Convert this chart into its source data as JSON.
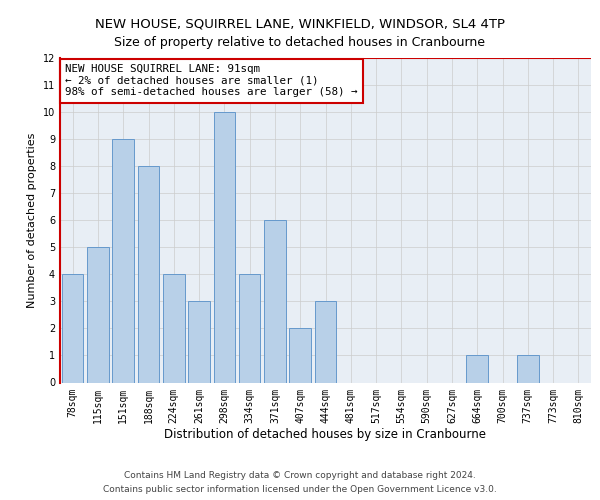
{
  "title": "NEW HOUSE, SQUIRREL LANE, WINKFIELD, WINDSOR, SL4 4TP",
  "subtitle": "Size of property relative to detached houses in Cranbourne",
  "xlabel": "Distribution of detached houses by size in Cranbourne",
  "ylabel": "Number of detached properties",
  "categories": [
    "78sqm",
    "115sqm",
    "151sqm",
    "188sqm",
    "224sqm",
    "261sqm",
    "298sqm",
    "334sqm",
    "371sqm",
    "407sqm",
    "444sqm",
    "481sqm",
    "517sqm",
    "554sqm",
    "590sqm",
    "627sqm",
    "664sqm",
    "700sqm",
    "737sqm",
    "773sqm",
    "810sqm"
  ],
  "values": [
    4,
    5,
    9,
    8,
    4,
    3,
    10,
    4,
    6,
    2,
    3,
    0,
    0,
    0,
    0,
    0,
    1,
    0,
    1,
    0,
    0
  ],
  "bar_color": "#b8d0e8",
  "bar_edge_color": "#6699cc",
  "highlight_color": "#cc0000",
  "annotation_line1": "NEW HOUSE SQUIRREL LANE: 91sqm",
  "annotation_line2": "← 2% of detached houses are smaller (1)",
  "annotation_line3": "98% of semi-detached houses are larger (58) →",
  "ylim": [
    0,
    12
  ],
  "yticks": [
    0,
    1,
    2,
    3,
    4,
    5,
    6,
    7,
    8,
    9,
    10,
    11,
    12
  ],
  "grid_color": "#cccccc",
  "background_color": "#ffffff",
  "ax_background": "#e8eef5",
  "footer_line1": "Contains HM Land Registry data © Crown copyright and database right 2024.",
  "footer_line2": "Contains public sector information licensed under the Open Government Licence v3.0.",
  "title_fontsize": 9.5,
  "subtitle_fontsize": 9,
  "xlabel_fontsize": 8.5,
  "ylabel_fontsize": 8,
  "tick_fontsize": 7,
  "footer_fontsize": 6.5,
  "annotation_fontsize": 7.8
}
